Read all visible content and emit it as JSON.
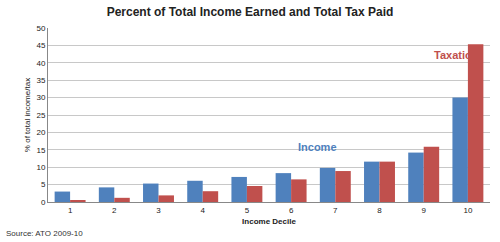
{
  "chart_data": {
    "type": "bar",
    "title": "Percent of Total Income Earned and Total Tax Paid",
    "x_label": "Income Decile",
    "y_label": "% of total income/tax",
    "source": "Source: ATO 2009-10",
    "categories": [
      "1",
      "2",
      "3",
      "4",
      "5",
      "6",
      "7",
      "8",
      "9",
      "10"
    ],
    "series": [
      {
        "name": "Income",
        "color": "#4f81bd",
        "values": [
          3.0,
          4.2,
          5.3,
          6.1,
          7.2,
          8.3,
          9.8,
          11.6,
          14.2,
          30.0
        ]
      },
      {
        "name": "Taxation",
        "color": "#c0504d",
        "values": [
          0.5,
          1.2,
          1.9,
          3.1,
          4.6,
          6.5,
          8.9,
          11.6,
          15.9,
          45.3
        ]
      }
    ],
    "ylim": [
      0,
      50
    ],
    "yticks": [
      0,
      5,
      10,
      15,
      20,
      25,
      30,
      35,
      40,
      45,
      50
    ],
    "grid": true
  }
}
